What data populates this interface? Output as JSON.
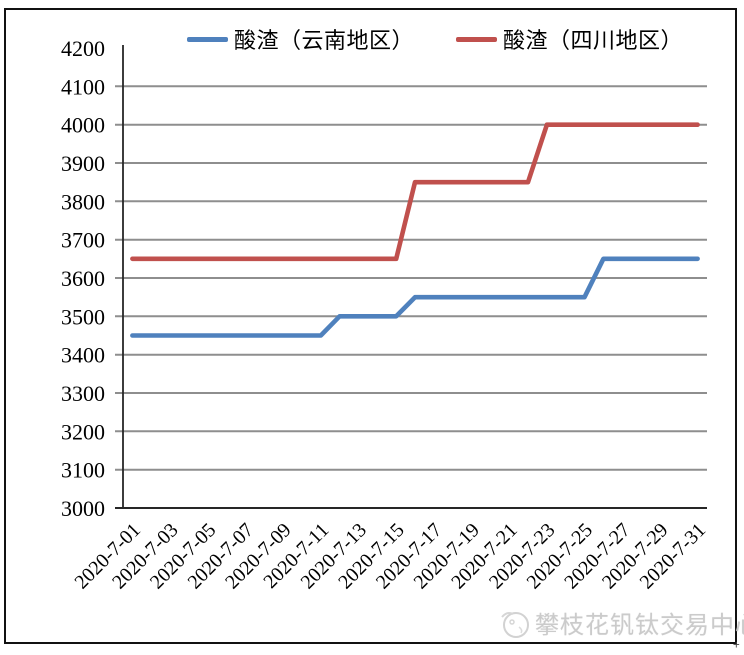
{
  "legend": {
    "items": [
      {
        "label": "酸渣（云南地区）",
        "color": "#4f81bd"
      },
      {
        "label": "酸渣（四川地区）",
        "color": "#c0504d"
      }
    ]
  },
  "watermark": {
    "text": "攀枝花钒钛交易中心"
  },
  "misc": {
    "corner_mark": "+"
  },
  "chart_data": {
    "type": "line",
    "title": "",
    "xlabel": "",
    "ylabel": "",
    "x": [
      "2020-7-01",
      "2020-7-02",
      "2020-7-03",
      "2020-7-04",
      "2020-7-05",
      "2020-7-06",
      "2020-7-07",
      "2020-7-08",
      "2020-7-09",
      "2020-7-10",
      "2020-7-11",
      "2020-7-12",
      "2020-7-13",
      "2020-7-14",
      "2020-7-15",
      "2020-7-16",
      "2020-7-17",
      "2020-7-18",
      "2020-7-19",
      "2020-7-20",
      "2020-7-21",
      "2020-7-22",
      "2020-7-23",
      "2020-7-24",
      "2020-7-25",
      "2020-7-26",
      "2020-7-27",
      "2020-7-28",
      "2020-7-29",
      "2020-7-30",
      "2020-7-31"
    ],
    "x_tick_labels": [
      "2020-7-01",
      "2020-7-03",
      "2020-7-05",
      "2020-7-07",
      "2020-7-09",
      "2020-7-11",
      "2020-7-13",
      "2020-7-15",
      "2020-7-17",
      "2020-7-19",
      "2020-7-21",
      "2020-7-23",
      "2020-7-25",
      "2020-7-27",
      "2020-7-29",
      "2020-7-31"
    ],
    "series": [
      {
        "name": "酸渣（云南地区）",
        "color": "#4f81bd",
        "values": [
          3450,
          3450,
          3450,
          3450,
          3450,
          3450,
          3450,
          3450,
          3450,
          3450,
          3450,
          3500,
          3500,
          3500,
          3500,
          3550,
          3550,
          3550,
          3550,
          3550,
          3550,
          3550,
          3550,
          3550,
          3550,
          3650,
          3650,
          3650,
          3650,
          3650,
          3650
        ]
      },
      {
        "name": "酸渣（四川地区）",
        "color": "#c0504d",
        "values": [
          3650,
          3650,
          3650,
          3650,
          3650,
          3650,
          3650,
          3650,
          3650,
          3650,
          3650,
          3650,
          3650,
          3650,
          3650,
          3850,
          3850,
          3850,
          3850,
          3850,
          3850,
          3850,
          4000,
          4000,
          4000,
          4000,
          4000,
          4000,
          4000,
          4000,
          4000
        ]
      }
    ],
    "ylim": [
      3000,
      4200
    ],
    "y_step": 100,
    "grid": true,
    "legend_position": "top",
    "gridline_color": "#8e8e8e",
    "axis_color": "#262626"
  }
}
